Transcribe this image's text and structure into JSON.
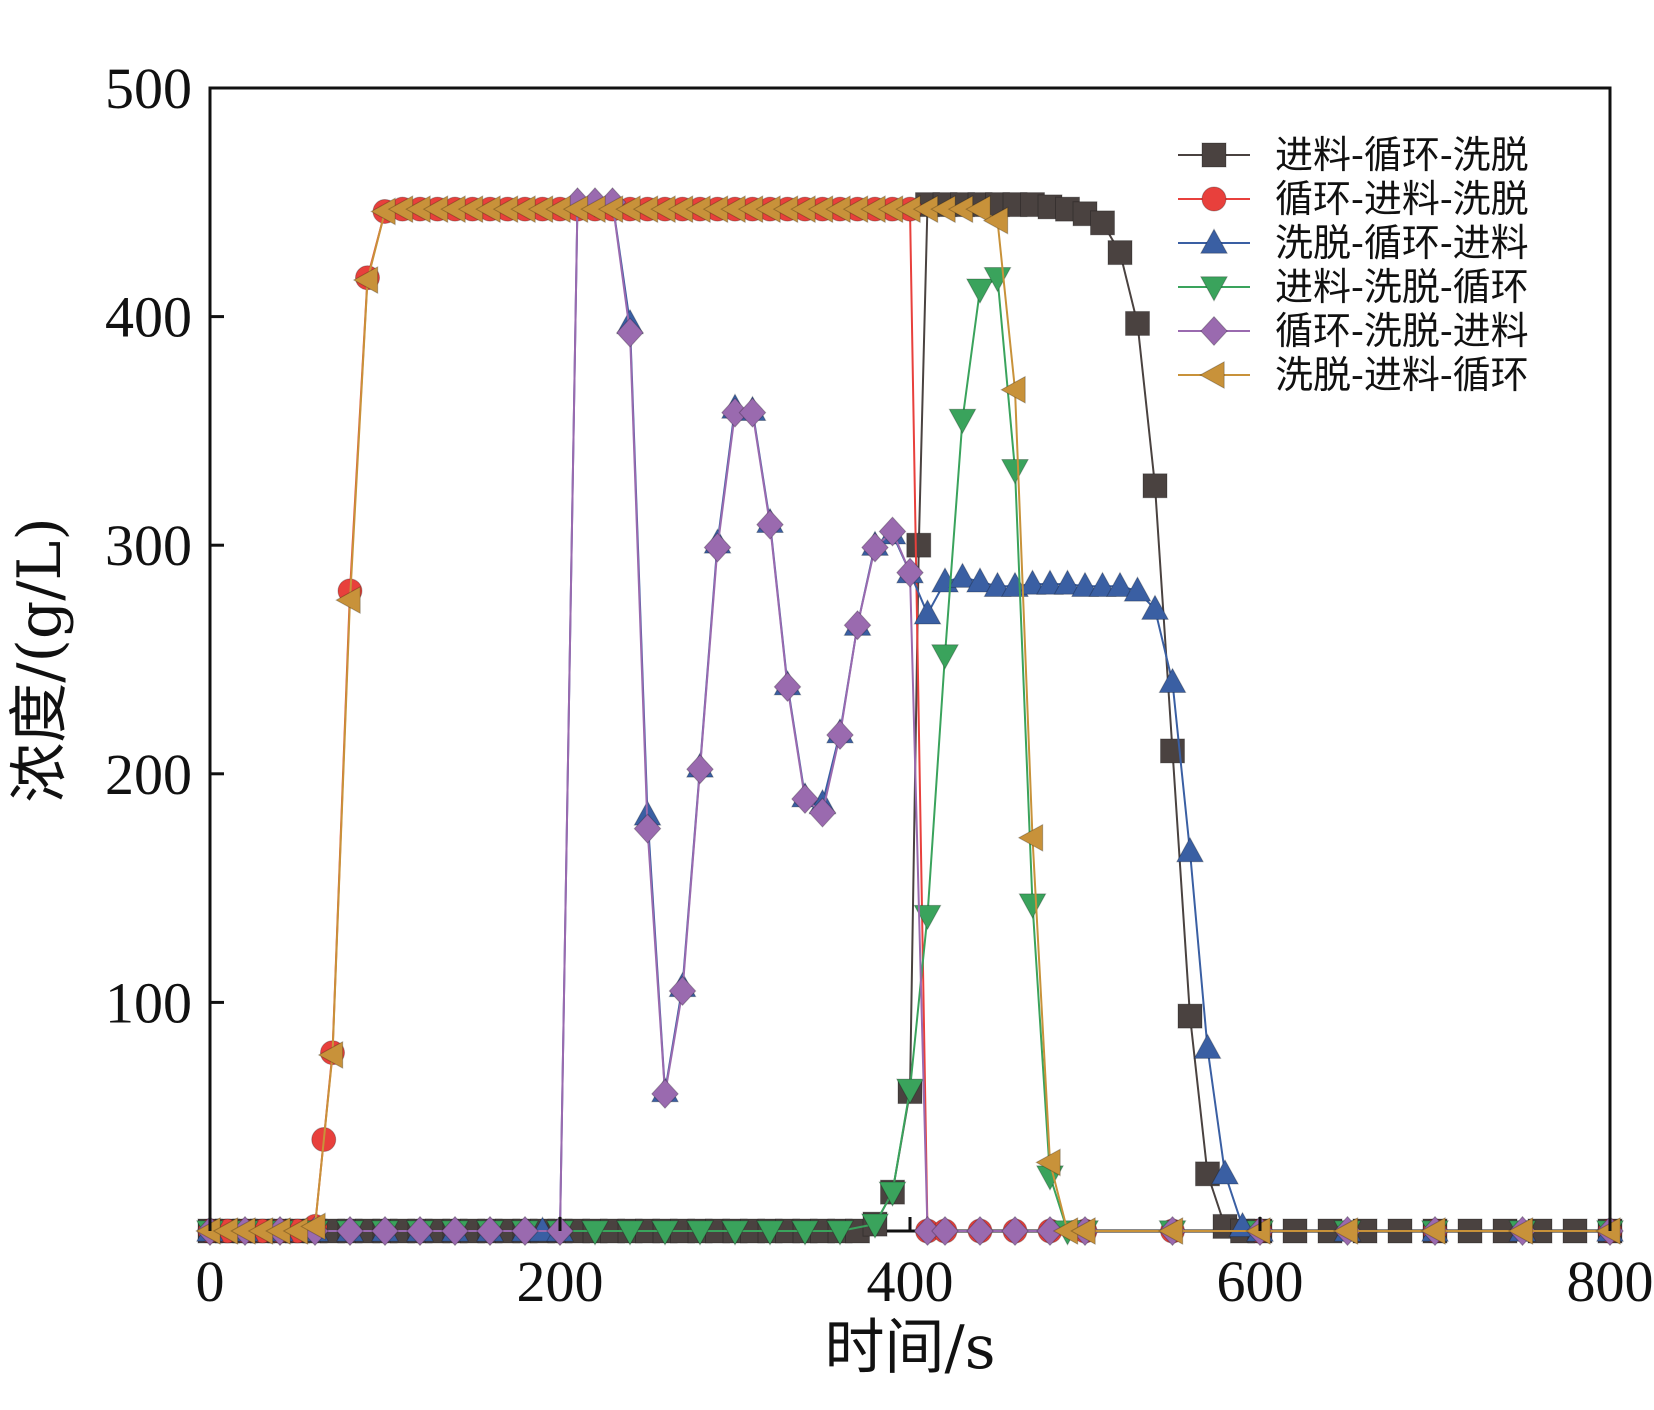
{
  "chart_data": {
    "type": "line",
    "title": "",
    "xlabel": "时间/s",
    "ylabel": "浓度/(g/L)",
    "xlim": [
      0,
      800
    ],
    "ylim": [
      0,
      500
    ],
    "xticks": [
      "0",
      "200",
      "400",
      "600",
      "800"
    ],
    "yticks": [
      "100",
      "200",
      "300",
      "400",
      "500"
    ],
    "legend_position": "top-right",
    "series": [
      {
        "name": "进料-循环-洗脱",
        "color": "#4a4240",
        "marker": "square",
        "x": [
          0,
          10,
          20,
          30,
          40,
          50,
          60,
          70,
          80,
          90,
          100,
          110,
          120,
          130,
          140,
          150,
          160,
          170,
          180,
          190,
          200,
          210,
          220,
          230,
          240,
          250,
          260,
          270,
          280,
          290,
          300,
          310,
          320,
          330,
          340,
          350,
          360,
          370,
          380,
          390,
          400,
          405,
          410,
          420,
          430,
          440,
          450,
          460,
          470,
          480,
          490,
          500,
          510,
          520,
          530,
          540,
          550,
          560,
          570,
          580,
          590,
          600,
          620,
          640,
          660,
          680,
          700,
          720,
          740,
          760,
          780,
          800
        ],
        "y": [
          0,
          0,
          0,
          0,
          0,
          0,
          0,
          0,
          0,
          0,
          0,
          0,
          0,
          0,
          0,
          0,
          0,
          0,
          0,
          0,
          0,
          0,
          0,
          0,
          0,
          0,
          0,
          0,
          0,
          0,
          0,
          0,
          0,
          0,
          0,
          0,
          0,
          0,
          3,
          17,
          61,
          300,
          449,
          449,
          449,
          449,
          449,
          449,
          449,
          448,
          447,
          445,
          441,
          428,
          397,
          326,
          210,
          94,
          25,
          2,
          0,
          0,
          0,
          0,
          0,
          0,
          0,
          0,
          0,
          0,
          0,
          0
        ]
      },
      {
        "name": "循环-进料-洗脱",
        "color": "#e8403c",
        "marker": "circle",
        "x": [
          0,
          10,
          20,
          30,
          40,
          50,
          60,
          65,
          70,
          80,
          90,
          100,
          110,
          120,
          130,
          140,
          150,
          160,
          170,
          180,
          190,
          200,
          210,
          220,
          230,
          240,
          250,
          260,
          270,
          280,
          290,
          300,
          310,
          320,
          330,
          340,
          350,
          360,
          370,
          380,
          390,
          400,
          410,
          420,
          440,
          460,
          480,
          500,
          550,
          600,
          700,
          800
        ],
        "y": [
          0,
          0,
          0,
          0,
          0,
          0,
          2,
          40,
          78,
          280,
          417,
          446,
          447,
          447,
          447,
          447,
          447,
          447,
          447,
          447,
          447,
          447,
          447,
          447,
          447,
          447,
          447,
          447,
          447,
          447,
          447,
          447,
          447,
          447,
          447,
          447,
          447,
          447,
          447,
          447,
          447,
          447,
          0,
          0,
          0,
          0,
          0,
          0,
          0,
          0,
          0,
          0
        ]
      },
      {
        "name": "洗脱-循环-进料",
        "color": "#3a5fa3",
        "marker": "triangle-up",
        "x": [
          0,
          20,
          40,
          60,
          80,
          100,
          120,
          140,
          160,
          180,
          190,
          200,
          210,
          220,
          230,
          240,
          250,
          260,
          270,
          280,
          290,
          300,
          310,
          320,
          330,
          340,
          350,
          360,
          370,
          380,
          390,
          400,
          410,
          420,
          430,
          440,
          450,
          460,
          470,
          480,
          490,
          500,
          510,
          520,
          530,
          540,
          550,
          560,
          570,
          580,
          590,
          600,
          650,
          700,
          750,
          800
        ],
        "y": [
          0,
          0,
          0,
          0,
          0,
          0,
          0,
          0,
          0,
          0,
          0,
          0,
          450,
          450,
          450,
          397,
          182,
          61,
          107,
          203,
          301,
          360,
          359,
          310,
          239,
          190,
          187,
          218,
          265,
          300,
          305,
          288,
          270,
          284,
          286,
          284,
          282,
          282,
          283,
          283,
          283,
          282,
          282,
          282,
          280,
          272,
          240,
          166,
          80,
          25,
          2,
          0,
          0,
          0,
          0,
          0
        ]
      },
      {
        "name": "进料-洗脱-循环",
        "color": "#3aa35c",
        "marker": "triangle-down",
        "x": [
          0,
          20,
          40,
          60,
          80,
          100,
          120,
          140,
          160,
          180,
          200,
          220,
          240,
          260,
          280,
          300,
          320,
          340,
          360,
          380,
          390,
          400,
          410,
          420,
          430,
          440,
          450,
          460,
          470,
          480,
          490,
          500,
          550,
          600,
          650,
          700,
          750,
          800
        ],
        "y": [
          0,
          0,
          0,
          0,
          0,
          0,
          0,
          0,
          0,
          0,
          0,
          0,
          0,
          0,
          0,
          0,
          0,
          0,
          0,
          3,
          17,
          62,
          138,
          252,
          355,
          412,
          417,
          333,
          143,
          24,
          0,
          0,
          0,
          0,
          0,
          0,
          0,
          0
        ]
      },
      {
        "name": "循环-洗脱-进料",
        "color": "#9a6aaf",
        "marker": "diamond",
        "x": [
          0,
          20,
          40,
          60,
          80,
          100,
          120,
          140,
          160,
          180,
          200,
          210,
          220,
          230,
          240,
          250,
          260,
          270,
          280,
          290,
          300,
          310,
          320,
          330,
          340,
          350,
          360,
          370,
          380,
          390,
          400,
          410,
          420,
          440,
          460,
          480,
          500,
          550,
          600,
          650,
          700,
          750,
          800
        ],
        "y": [
          0,
          0,
          0,
          0,
          0,
          0,
          0,
          0,
          0,
          0,
          0,
          450,
          450,
          450,
          393,
          176,
          60,
          105,
          202,
          299,
          358,
          358,
          309,
          238,
          189,
          183,
          217,
          265,
          299,
          306,
          288,
          0,
          0,
          0,
          0,
          0,
          0,
          0,
          0,
          0,
          0,
          0,
          0
        ]
      },
      {
        "name": "洗脱-进料-循环",
        "color": "#c8923a",
        "marker": "triangle-left",
        "x": [
          0,
          10,
          20,
          30,
          40,
          50,
          60,
          70,
          80,
          90,
          100,
          110,
          120,
          130,
          140,
          150,
          160,
          170,
          180,
          190,
          200,
          210,
          220,
          230,
          240,
          250,
          260,
          270,
          280,
          290,
          300,
          310,
          320,
          330,
          340,
          350,
          360,
          370,
          380,
          390,
          400,
          410,
          420,
          430,
          440,
          450,
          460,
          470,
          480,
          490,
          500,
          550,
          600,
          650,
          700,
          750,
          800
        ],
        "y": [
          0,
          0,
          0,
          0,
          0,
          0,
          2,
          77,
          276,
          416,
          446,
          447,
          447,
          447,
          447,
          447,
          447,
          447,
          447,
          447,
          447,
          447,
          447,
          447,
          447,
          447,
          447,
          447,
          447,
          447,
          447,
          447,
          447,
          447,
          447,
          447,
          447,
          447,
          447,
          447,
          447,
          447,
          447,
          447,
          447,
          442,
          368,
          172,
          30,
          0,
          0,
          0,
          0,
          0,
          0,
          0,
          0
        ]
      }
    ]
  }
}
